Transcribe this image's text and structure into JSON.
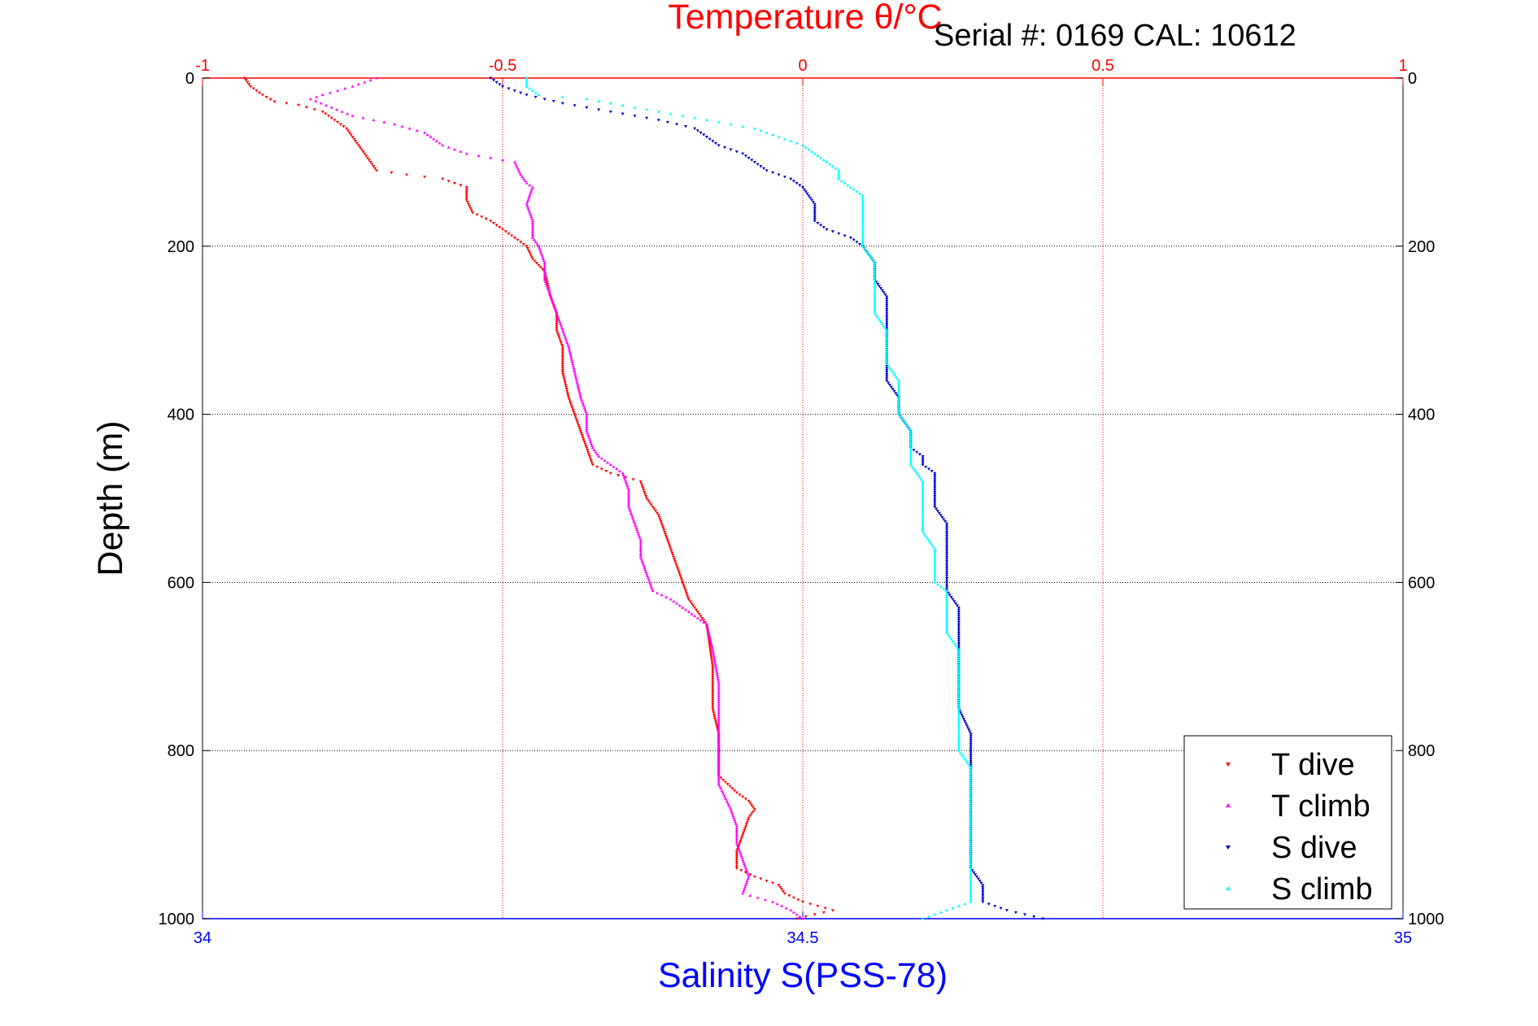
{
  "chart_data": {
    "type": "scatter",
    "serial_text": "Serial #: 0169 CAL: 10612",
    "y_axis": {
      "label": "Depth (m)",
      "range": [
        0,
        1000
      ],
      "reversed": true,
      "ticks": [
        0,
        200,
        400,
        600,
        800,
        1000
      ]
    },
    "top_axis": {
      "label": "Temperature θ/°C",
      "range": [
        -1,
        1
      ],
      "ticks": [
        -1,
        -0.5,
        0,
        0.5,
        1
      ],
      "color": "#ff0000"
    },
    "bottom_axis": {
      "label": "Salinity S(PSS-78)",
      "range": [
        34,
        35
      ],
      "ticks": [
        34,
        34.5,
        35
      ],
      "color": "#0000ff"
    },
    "grid": true,
    "legend_placement": "bottom-right",
    "series": [
      {
        "name": "T dive",
        "axis": "temperature",
        "color": "#ff0000",
        "marker": "triangle-down",
        "points": [
          [
            -0.93,
            0
          ],
          [
            -0.92,
            10
          ],
          [
            -0.9,
            20
          ],
          [
            -0.88,
            28
          ],
          [
            -0.84,
            32
          ],
          [
            -0.8,
            40
          ],
          [
            -0.78,
            50
          ],
          [
            -0.76,
            60
          ],
          [
            -0.75,
            70
          ],
          [
            -0.74,
            80
          ],
          [
            -0.73,
            90
          ],
          [
            -0.72,
            100
          ],
          [
            -0.71,
            110
          ],
          [
            -0.66,
            115
          ],
          [
            -0.6,
            120
          ],
          [
            -0.58,
            125
          ],
          [
            -0.56,
            130
          ],
          [
            -0.56,
            145
          ],
          [
            -0.55,
            160
          ],
          [
            -0.52,
            170
          ],
          [
            -0.5,
            180
          ],
          [
            -0.48,
            190
          ],
          [
            -0.46,
            200
          ],
          [
            -0.45,
            215
          ],
          [
            -0.43,
            230
          ],
          [
            -0.42,
            260
          ],
          [
            -0.41,
            280
          ],
          [
            -0.41,
            300
          ],
          [
            -0.4,
            320
          ],
          [
            -0.4,
            350
          ],
          [
            -0.39,
            380
          ],
          [
            -0.38,
            400
          ],
          [
            -0.37,
            420
          ],
          [
            -0.36,
            440
          ],
          [
            -0.35,
            460
          ],
          [
            -0.32,
            470
          ],
          [
            -0.27,
            480
          ],
          [
            -0.26,
            500
          ],
          [
            -0.24,
            520
          ],
          [
            -0.23,
            540
          ],
          [
            -0.22,
            560
          ],
          [
            -0.21,
            580
          ],
          [
            -0.2,
            600
          ],
          [
            -0.19,
            620
          ],
          [
            -0.17,
            640
          ],
          [
            -0.16,
            650
          ],
          [
            -0.15,
            700
          ],
          [
            -0.15,
            750
          ],
          [
            -0.14,
            780
          ],
          [
            -0.14,
            800
          ],
          [
            -0.14,
            830
          ],
          [
            -0.11,
            850
          ],
          [
            -0.09,
            860
          ],
          [
            -0.08,
            870
          ],
          [
            -0.09,
            880
          ],
          [
            -0.1,
            900
          ],
          [
            -0.11,
            920
          ],
          [
            -0.11,
            940
          ],
          [
            -0.08,
            950
          ],
          [
            -0.04,
            960
          ],
          [
            -0.03,
            970
          ],
          [
            0.0,
            980
          ],
          [
            0.05,
            990
          ],
          [
            -0.01,
            1000
          ]
        ]
      },
      {
        "name": "T climb",
        "axis": "temperature",
        "color": "#ff00ff",
        "marker": "triangle-up",
        "points": [
          [
            -0.71,
            0
          ],
          [
            -0.75,
            10
          ],
          [
            -0.8,
            20
          ],
          [
            -0.82,
            25
          ],
          [
            -0.75,
            45
          ],
          [
            -0.68,
            55
          ],
          [
            -0.63,
            65
          ],
          [
            -0.6,
            80
          ],
          [
            -0.56,
            90
          ],
          [
            -0.52,
            95
          ],
          [
            -0.48,
            100
          ],
          [
            -0.47,
            115
          ],
          [
            -0.46,
            125
          ],
          [
            -0.45,
            130
          ],
          [
            -0.46,
            150
          ],
          [
            -0.45,
            170
          ],
          [
            -0.45,
            190
          ],
          [
            -0.44,
            200
          ],
          [
            -0.43,
            220
          ],
          [
            -0.43,
            240
          ],
          [
            -0.42,
            260
          ],
          [
            -0.41,
            280
          ],
          [
            -0.4,
            300
          ],
          [
            -0.39,
            320
          ],
          [
            -0.38,
            350
          ],
          [
            -0.37,
            380
          ],
          [
            -0.36,
            400
          ],
          [
            -0.36,
            420
          ],
          [
            -0.35,
            440
          ],
          [
            -0.34,
            450
          ],
          [
            -0.32,
            460
          ],
          [
            -0.3,
            470
          ],
          [
            -0.29,
            490
          ],
          [
            -0.29,
            510
          ],
          [
            -0.28,
            530
          ],
          [
            -0.27,
            550
          ],
          [
            -0.27,
            570
          ],
          [
            -0.26,
            590
          ],
          [
            -0.25,
            610
          ],
          [
            -0.22,
            620
          ],
          [
            -0.2,
            630
          ],
          [
            -0.18,
            640
          ],
          [
            -0.16,
            650
          ],
          [
            -0.15,
            680
          ],
          [
            -0.14,
            720
          ],
          [
            -0.14,
            760
          ],
          [
            -0.14,
            800
          ],
          [
            -0.14,
            830
          ],
          [
            -0.14,
            840
          ],
          [
            -0.12,
            870
          ],
          [
            -0.11,
            890
          ],
          [
            -0.11,
            910
          ],
          [
            -0.1,
            930
          ],
          [
            -0.09,
            950
          ],
          [
            -0.1,
            970
          ],
          [
            -0.05,
            980
          ],
          [
            -0.02,
            990
          ],
          [
            0.0,
            1000
          ]
        ]
      },
      {
        "name": "S dive",
        "axis": "salinity",
        "color": "#0000cc",
        "marker": "triangle-down",
        "points": [
          [
            34.24,
            0
          ],
          [
            34.25,
            10
          ],
          [
            34.27,
            20
          ],
          [
            34.3,
            30
          ],
          [
            34.34,
            40
          ],
          [
            34.38,
            50
          ],
          [
            34.41,
            60
          ],
          [
            34.42,
            70
          ],
          [
            34.43,
            80
          ],
          [
            34.45,
            90
          ],
          [
            34.46,
            100
          ],
          [
            34.47,
            110
          ],
          [
            34.49,
            120
          ],
          [
            34.5,
            130
          ],
          [
            34.51,
            150
          ],
          [
            34.51,
            170
          ],
          [
            34.52,
            180
          ],
          [
            34.54,
            190
          ],
          [
            34.55,
            200
          ],
          [
            34.56,
            220
          ],
          [
            34.56,
            240
          ],
          [
            34.57,
            260
          ],
          [
            34.57,
            280
          ],
          [
            34.57,
            300
          ],
          [
            34.57,
            320
          ],
          [
            34.57,
            340
          ],
          [
            34.57,
            360
          ],
          [
            34.58,
            380
          ],
          [
            34.58,
            400
          ],
          [
            34.59,
            420
          ],
          [
            34.59,
            440
          ],
          [
            34.6,
            450
          ],
          [
            34.6,
            460
          ],
          [
            34.61,
            470
          ],
          [
            34.61,
            490
          ],
          [
            34.61,
            510
          ],
          [
            34.62,
            530
          ],
          [
            34.62,
            550
          ],
          [
            34.62,
            570
          ],
          [
            34.62,
            590
          ],
          [
            34.62,
            610
          ],
          [
            34.63,
            630
          ],
          [
            34.63,
            650
          ],
          [
            34.63,
            680
          ],
          [
            34.63,
            720
          ],
          [
            34.63,
            750
          ],
          [
            34.64,
            780
          ],
          [
            34.64,
            800
          ],
          [
            34.64,
            820
          ],
          [
            34.64,
            840
          ],
          [
            34.64,
            860
          ],
          [
            34.64,
            880
          ],
          [
            34.64,
            900
          ],
          [
            34.64,
            920
          ],
          [
            34.64,
            940
          ],
          [
            34.65,
            960
          ],
          [
            34.65,
            980
          ],
          [
            34.67,
            990
          ],
          [
            34.7,
            1000
          ]
        ]
      },
      {
        "name": "S climb",
        "axis": "salinity",
        "color": "#00ffff",
        "marker": "triangle-up",
        "points": [
          [
            34.27,
            0
          ],
          [
            34.27,
            10
          ],
          [
            34.28,
            20
          ],
          [
            34.32,
            25
          ],
          [
            34.36,
            35
          ],
          [
            34.4,
            45
          ],
          [
            34.44,
            55
          ],
          [
            34.46,
            60
          ],
          [
            34.48,
            70
          ],
          [
            34.5,
            80
          ],
          [
            34.51,
            90
          ],
          [
            34.52,
            100
          ],
          [
            34.53,
            110
          ],
          [
            34.53,
            120
          ],
          [
            34.54,
            130
          ],
          [
            34.55,
            140
          ],
          [
            34.55,
            150
          ],
          [
            34.55,
            160
          ],
          [
            34.55,
            170
          ],
          [
            34.55,
            180
          ],
          [
            34.55,
            200
          ],
          [
            34.56,
            220
          ],
          [
            34.56,
            240
          ],
          [
            34.56,
            260
          ],
          [
            34.56,
            280
          ],
          [
            34.57,
            300
          ],
          [
            34.57,
            320
          ],
          [
            34.57,
            340
          ],
          [
            34.58,
            360
          ],
          [
            34.58,
            380
          ],
          [
            34.58,
            400
          ],
          [
            34.59,
            420
          ],
          [
            34.59,
            440
          ],
          [
            34.59,
            460
          ],
          [
            34.6,
            480
          ],
          [
            34.6,
            500
          ],
          [
            34.6,
            520
          ],
          [
            34.6,
            540
          ],
          [
            34.61,
            560
          ],
          [
            34.61,
            580
          ],
          [
            34.61,
            600
          ],
          [
            34.62,
            610
          ],
          [
            34.62,
            620
          ],
          [
            34.62,
            640
          ],
          [
            34.62,
            660
          ],
          [
            34.63,
            680
          ],
          [
            34.63,
            700
          ],
          [
            34.63,
            720
          ],
          [
            34.63,
            740
          ],
          [
            34.63,
            760
          ],
          [
            34.63,
            780
          ],
          [
            34.63,
            800
          ],
          [
            34.64,
            820
          ],
          [
            34.64,
            840
          ],
          [
            34.64,
            860
          ],
          [
            34.64,
            880
          ],
          [
            34.64,
            900
          ],
          [
            34.64,
            920
          ],
          [
            34.64,
            940
          ],
          [
            34.64,
            960
          ],
          [
            34.64,
            980
          ],
          [
            34.6,
            1000
          ]
        ]
      }
    ]
  }
}
